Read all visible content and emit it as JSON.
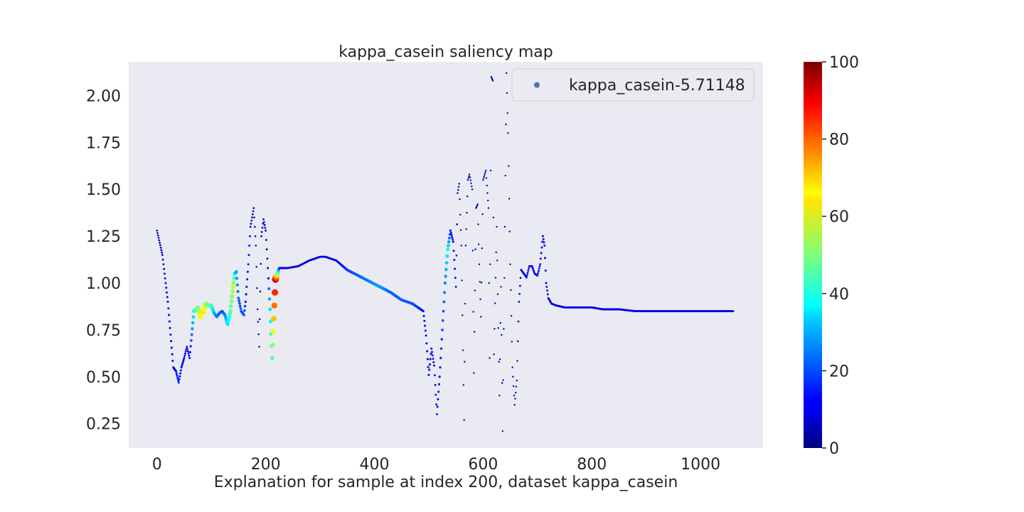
{
  "chart_data": {
    "type": "scatter",
    "title": "kappa_casein saliency map",
    "xlabel": "Explanation for sample at index 200, dataset kappa_casein",
    "ylabel": "",
    "xlim": [
      -52,
      1115
    ],
    "ylim": [
      0.12,
      2.18
    ],
    "xticks": [
      0,
      200,
      400,
      600,
      800,
      1000
    ],
    "xtick_labels": [
      "0",
      "200",
      "400",
      "600",
      "800",
      "1000"
    ],
    "yticks": [
      0.25,
      0.5,
      0.75,
      1.0,
      1.25,
      1.5,
      1.75,
      2.0
    ],
    "ytick_labels": [
      "0.25",
      "0.50",
      "0.75",
      "1.00",
      "1.25",
      "1.50",
      "1.75",
      "2.00"
    ],
    "grid": false,
    "legend": {
      "position": "top-right",
      "entries": [
        "kappa_casein-5.71148"
      ]
    },
    "series": [
      {
        "name": "kappa_casein-5.71148",
        "x": [
          0,
          10,
          20,
          30,
          35,
          40,
          45,
          50,
          55,
          60,
          68,
          75,
          80,
          85,
          90,
          95,
          100,
          105,
          110,
          115,
          120,
          125,
          130,
          135,
          140,
          143,
          146,
          150,
          155,
          160,
          163,
          168,
          172,
          178,
          182,
          185,
          188,
          192,
          196,
          200,
          204,
          208,
          212,
          218,
          225,
          240,
          260,
          280,
          300,
          310,
          330,
          350,
          370,
          390,
          410,
          430,
          450,
          470,
          480,
          490,
          495,
          500,
          505,
          510,
          515,
          520,
          525,
          530,
          535,
          540,
          545,
          550,
          553,
          556,
          560,
          565,
          568,
          572,
          575,
          580,
          583,
          587,
          590,
          593,
          596,
          600,
          605,
          610,
          612,
          615,
          618,
          620,
          625,
          630,
          633,
          636,
          640,
          643,
          646,
          650,
          654,
          658,
          662,
          666,
          670,
          675,
          680,
          685,
          690,
          695,
          700,
          705,
          710,
          713,
          716,
          720,
          726,
          735,
          750,
          780,
          800,
          820,
          850,
          880,
          900,
          950,
          1000,
          1060
        ],
        "y": [
          1.28,
          1.15,
          0.9,
          0.55,
          0.53,
          0.47,
          0.55,
          0.6,
          0.66,
          0.6,
          0.85,
          0.87,
          0.82,
          0.85,
          0.89,
          0.88,
          0.88,
          0.84,
          0.82,
          0.84,
          0.85,
          0.83,
          0.78,
          0.85,
          0.98,
          1.05,
          1.06,
          0.92,
          0.85,
          0.83,
          0.9,
          1.1,
          1.3,
          1.4,
          1.2,
          0.86,
          0.66,
          1.25,
          1.34,
          1.28,
          1.08,
          0.86,
          0.6,
          1.02,
          1.08,
          1.08,
          1.09,
          1.12,
          1.14,
          1.14,
          1.12,
          1.07,
          1.04,
          1.01,
          0.98,
          0.95,
          0.91,
          0.89,
          0.87,
          0.85,
          0.72,
          0.51,
          0.65,
          0.56,
          0.3,
          0.5,
          0.75,
          1.0,
          1.18,
          1.28,
          1.22,
          0.98,
          1.48,
          1.53,
          1.2,
          0.27,
          1.2,
          1.55,
          1.58,
          1.5,
          0.52,
          1.4,
          1.42,
          1.1,
          0.82,
          1.55,
          1.6,
          1.4,
          0.6,
          2.1,
          2.08,
          0.62,
          1.3,
          0.4,
          0.98,
          0.21,
          1.3,
          2.12,
          1.8,
          1.1,
          0.55,
          0.35,
          0.48,
          0.9,
          1.07,
          1.05,
          1.03,
          1.09,
          1.09,
          1.05,
          1.04,
          1.1,
          1.25,
          1.2,
          1.0,
          0.92,
          0.89,
          0.88,
          0.87,
          0.87,
          0.87,
          0.86,
          0.86,
          0.85,
          0.85,
          0.85,
          0.85,
          0.85
        ],
        "saliency": [
          8,
          10,
          12,
          14,
          14,
          15,
          12,
          12,
          10,
          10,
          38,
          50,
          58,
          65,
          55,
          48,
          46,
          30,
          25,
          22,
          20,
          25,
          35,
          45,
          56,
          38,
          28,
          22,
          18,
          22,
          18,
          10,
          10,
          8,
          6,
          6,
          6,
          8,
          10,
          10,
          10,
          35,
          45,
          92,
          15,
          10,
          10,
          10,
          10,
          10,
          10,
          18,
          22,
          25,
          28,
          22,
          22,
          20,
          18,
          12,
          12,
          15,
          12,
          10,
          10,
          15,
          18,
          25,
          38,
          14,
          12,
          10,
          6,
          6,
          5,
          5,
          5,
          5,
          5,
          5,
          5,
          5,
          5,
          5,
          5,
          5,
          5,
          5,
          5,
          5,
          5,
          5,
          5,
          5,
          5,
          5,
          5,
          5,
          5,
          5,
          5,
          5,
          5,
          8,
          10,
          10,
          10,
          10,
          10,
          10,
          10,
          10,
          12,
          12,
          12,
          10,
          10,
          10,
          10,
          10,
          10,
          10,
          10,
          10,
          10,
          10,
          10,
          10
        ]
      }
    ],
    "colorbar": {
      "min": 0,
      "max": 100,
      "ticks": [
        0,
        20,
        40,
        60,
        80,
        100
      ],
      "tick_labels": [
        "0",
        "20",
        "40",
        "60",
        "80",
        "100"
      ],
      "colormap": "jet"
    },
    "colors": {
      "plot_background": "#eaeaf2",
      "legend_marker": "#4c72b0",
      "text": "#262626"
    }
  }
}
